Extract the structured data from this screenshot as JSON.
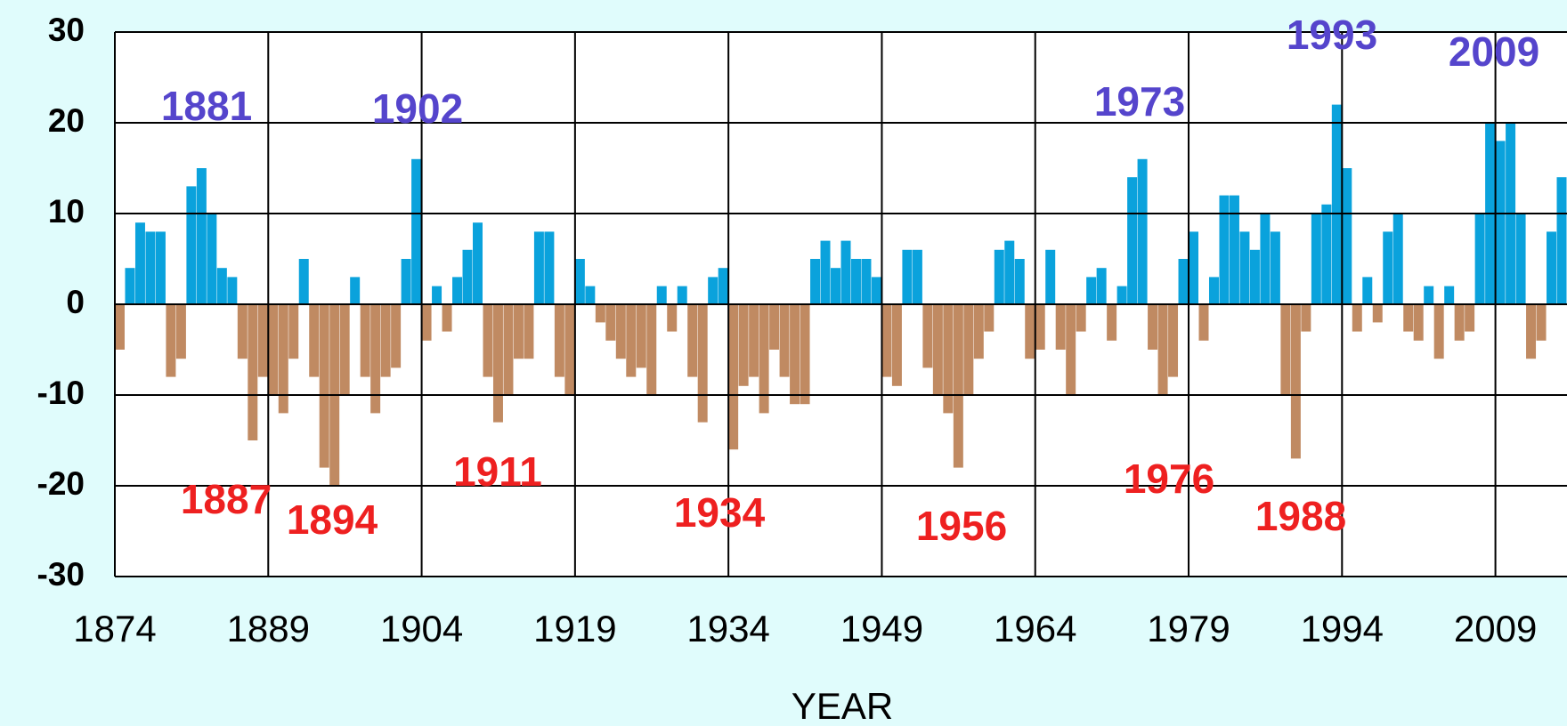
{
  "chart_data": {
    "type": "bar",
    "x_label": "YEAR",
    "x": [
      1874,
      1875,
      1876,
      1877,
      1878,
      1879,
      1880,
      1881,
      1882,
      1883,
      1884,
      1885,
      1886,
      1887,
      1888,
      1889,
      1890,
      1891,
      1892,
      1893,
      1894,
      1895,
      1896,
      1897,
      1898,
      1899,
      1900,
      1901,
      1902,
      1903,
      1904,
      1905,
      1906,
      1907,
      1908,
      1909,
      1910,
      1911,
      1912,
      1913,
      1914,
      1915,
      1916,
      1917,
      1918,
      1919,
      1920,
      1921,
      1922,
      1923,
      1924,
      1925,
      1926,
      1927,
      1928,
      1929,
      1930,
      1931,
      1932,
      1933,
      1934,
      1935,
      1936,
      1937,
      1938,
      1939,
      1940,
      1941,
      1942,
      1943,
      1944,
      1945,
      1946,
      1947,
      1948,
      1949,
      1950,
      1951,
      1952,
      1953,
      1954,
      1955,
      1956,
      1957,
      1958,
      1959,
      1960,
      1961,
      1962,
      1963,
      1964,
      1965,
      1966,
      1967,
      1968,
      1969,
      1970,
      1971,
      1972,
      1973,
      1974,
      1975,
      1976,
      1977,
      1978,
      1979,
      1980,
      1981,
      1982,
      1983,
      1984,
      1985,
      1986,
      1987,
      1988,
      1989,
      1990,
      1991,
      1992,
      1993,
      1994,
      1995,
      1996,
      1997,
      1998,
      1999,
      2000,
      2001,
      2002,
      2003,
      2004,
      2005,
      2006,
      2007,
      2008,
      2009,
      2010,
      2011,
      2012,
      2013,
      2014,
      2015
    ],
    "values": [
      -5,
      4,
      9,
      8,
      8,
      -8,
      -6,
      13,
      15,
      10,
      4,
      3,
      -6,
      -15,
      -8,
      -10,
      -12,
      -6,
      5,
      -8,
      -18,
      -20,
      -10,
      3,
      -8,
      -12,
      -8,
      -7,
      5,
      16,
      -4,
      2,
      -3,
      3,
      6,
      9,
      -8,
      -13,
      -10,
      -6,
      -6,
      8,
      8,
      -8,
      -10,
      5,
      2,
      -2,
      -4,
      -6,
      -8,
      -7,
      -10,
      2,
      -3,
      2,
      -8,
      -13,
      3,
      4,
      -16,
      -9,
      -8,
      -12,
      -5,
      -8,
      -11,
      -11,
      5,
      7,
      4,
      7,
      5,
      5,
      3,
      -8,
      -9,
      6,
      6,
      -7,
      -10,
      -12,
      -18,
      -10,
      -6,
      -3,
      6,
      7,
      5,
      -6,
      -5,
      6,
      -5,
      -10,
      -3,
      3,
      4,
      -4,
      2,
      14,
      16,
      -5,
      -10,
      -8,
      5,
      8,
      -4,
      3,
      12,
      12,
      8,
      6,
      10,
      8,
      -10,
      -17,
      -3,
      10,
      11,
      22,
      15,
      -3,
      3,
      -2,
      8,
      10,
      -3,
      -4,
      2,
      -6,
      2,
      -4,
      -3,
      10,
      20,
      18,
      20,
      10,
      -6,
      -4,
      8,
      14
    ],
    "positive_color": "#0aa2dc",
    "negative_color": "#c08a62",
    "xlim": [
      1874,
      2016
    ],
    "xticks": [
      1874,
      1889,
      1904,
      1919,
      1934,
      1949,
      1964,
      1979,
      1994,
      2009
    ],
    "ylim": [
      -30,
      30
    ],
    "yticks": [
      -30,
      -20,
      -10,
      0,
      10,
      20,
      30
    ],
    "grid": true,
    "annotations": [
      {
        "text": "1881",
        "color": "#5545cc"
      },
      {
        "text": "1902",
        "color": "#5545cc"
      },
      {
        "text": "1973",
        "color": "#5545cc"
      },
      {
        "text": "1993",
        "color": "#5545cc"
      },
      {
        "text": "2009",
        "color": "#5545cc"
      },
      {
        "text": "1887",
        "color": "#ee2020"
      },
      {
        "text": "1894",
        "color": "#ee2020"
      },
      {
        "text": "1911",
        "color": "#ee2020"
      },
      {
        "text": "1934",
        "color": "#ee2020"
      },
      {
        "text": "1956",
        "color": "#ee2020"
      },
      {
        "text": "1976",
        "color": "#ee2020"
      },
      {
        "text": "1988",
        "color": "#ee2020"
      }
    ]
  }
}
